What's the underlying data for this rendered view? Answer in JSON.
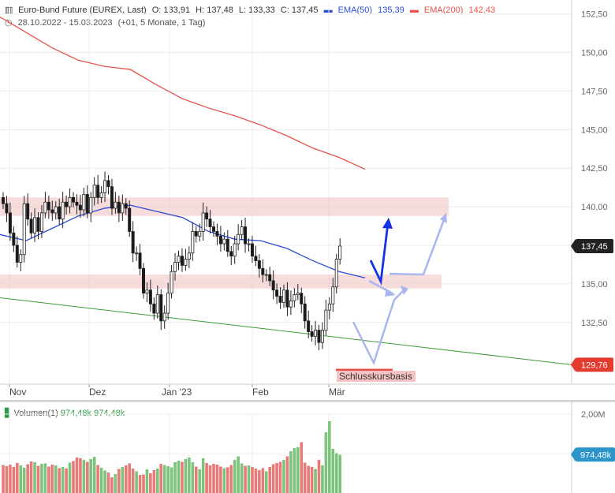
{
  "header": {
    "instrument": "Euro-Bund Future (EUREX, Last)",
    "open": "O: 133,91",
    "high": "H: 137,48",
    "low": "L: 133,33",
    "close": "C: 137,45",
    "ema50_label": "EMA(50)",
    "ema50_value": "135,39",
    "ema200_label": "EMA(200)",
    "ema200_value": "142,43",
    "date_range": "28.10.2022 - 15.03.2023",
    "period": "(+01, 5 Monate, 1 Tag)"
  },
  "volume_header": {
    "label": "Volumen(1)",
    "value1": "974,48k",
    "value2": "974,48k"
  },
  "colors": {
    "up": "#2e7d32",
    "down": "#1a1a1a",
    "ema50": "#2b4bd6",
    "ema200": "#e8504a",
    "zone": "#f2c4c4",
    "trend": "#3a9a3a",
    "arrow_dark": "#1533e6",
    "arrow_light": "#aab6f0",
    "vol_up": "#7cc47c",
    "vol_down": "#e87a7a"
  },
  "chart_data": {
    "type": "candlestick",
    "y_axis": {
      "range": [
        128.5,
        153.3
      ],
      "ticks": [
        "152,50",
        "150,00",
        "147,50",
        "145,00",
        "142,50",
        "140,00",
        "137,50",
        "135,00",
        "132,50"
      ]
    },
    "x_labels": [
      "Nov",
      "Dez",
      "Jan '23",
      "Feb",
      "Mär"
    ],
    "price_badge": "137,45",
    "support_badge": "129,76",
    "schlusskurs_label": "Schlusskursbasis",
    "zones": [
      {
        "low": 139.4,
        "high": 140.6
      },
      {
        "low": 134.7,
        "high": 135.6
      }
    ],
    "trendline": {
      "start": 134.1,
      "end": 129.76
    },
    "ema200": [
      152.3,
      151.3,
      150.3,
      149.5,
      149.1,
      148.9,
      147.9,
      147.0,
      146.4,
      145.9,
      145.3,
      144.6,
      143.8,
      143.2,
      142.43
    ],
    "ema50": [
      138.2,
      137.8,
      138.6,
      139.4,
      139.9,
      140.1,
      139.7,
      139.3,
      138.4,
      137.9,
      137.8,
      137.3,
      136.5,
      135.8,
      135.39
    ],
    "closes": [
      140.2,
      139.6,
      138.3,
      137.5,
      136.4,
      136.9,
      140.2,
      139.2,
      138.3,
      139.3,
      138.4,
      139.6,
      140.3,
      139.8,
      139.6,
      140.0,
      139.2,
      140.3,
      140.0,
      140.6,
      140.3,
      140.1,
      139.8,
      140.8,
      139.6,
      140.6,
      141.4,
      140.6,
      140.9,
      141.7,
      141.3,
      139.9,
      140.3,
      139.6,
      140.2,
      139.9,
      138.4,
      137.0,
      137.0,
      136.0,
      134.4,
      134.6,
      133.7,
      133.1,
      134.3,
      132.6,
      133.1,
      134.4,
      135.8,
      136.4,
      136.8,
      136.2,
      136.6,
      137.0,
      138.4,
      138.1,
      138.4,
      139.6,
      139.2,
      138.7,
      138.4,
      138.1,
      137.6,
      137.9,
      137.1,
      136.8,
      137.6,
      138.2,
      138.7,
      137.6,
      137.6,
      136.8,
      136.5,
      136.0,
      135.6,
      135.6,
      135.2,
      134.6,
      134.2,
      133.8,
      134.6,
      133.5,
      133.9,
      134.3,
      134.4,
      133.7,
      132.6,
      131.9,
      131.6,
      132.0,
      131.2,
      132.0,
      133.3,
      133.7,
      134.8,
      136.6,
      137.45
    ],
    "volume": {
      "axis_labels": [
        "2,00M"
      ],
      "last_badge": "974,48k",
      "values": [
        0.71,
        0.68,
        0.72,
        0.66,
        0.76,
        0.7,
        0.64,
        0.73,
        0.8,
        0.78,
        0.69,
        0.74,
        0.75,
        0.67,
        0.72,
        0.7,
        0.63,
        0.66,
        0.62,
        0.77,
        0.81,
        0.9,
        0.88,
        0.84,
        0.79,
        0.86,
        0.92,
        0.71,
        0.64,
        0.57,
        0.52,
        0.4,
        0.48,
        0.61,
        0.66,
        0.7,
        0.75,
        0.62,
        0.55,
        0.46,
        0.47,
        0.6,
        0.5,
        0.58,
        0.62,
        0.74,
        0.71,
        0.68,
        0.65,
        0.78,
        0.82,
        0.79,
        0.86,
        0.9,
        0.78,
        0.67,
        0.6,
        0.88,
        0.76,
        0.7,
        0.74,
        0.72,
        0.67,
        0.63,
        0.65,
        0.71,
        0.84,
        0.93,
        0.75,
        0.69,
        0.7,
        0.66,
        0.62,
        0.58,
        0.63,
        0.55,
        0.66,
        0.73,
        0.76,
        0.79,
        0.84,
        0.93,
        1.06,
        1.14,
        1.16,
        1.29,
        0.77,
        0.69,
        0.66,
        0.61,
        0.84,
        0.7,
        1.54,
        1.82,
        1.12,
        1.01,
        0.97
      ]
    }
  }
}
